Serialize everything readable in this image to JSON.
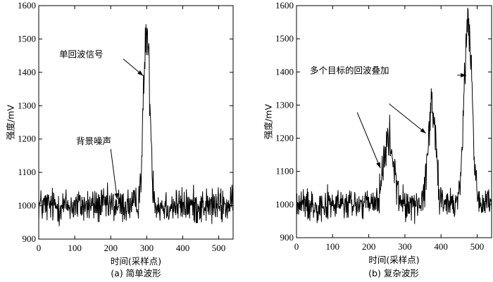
{
  "chart_data": [
    {
      "type": "line",
      "caption": "(a) 简单波形",
      "xlabel": "时间(采样点)",
      "ylabel": "强度/mV",
      "xlim": [
        0,
        540
      ],
      "ylim": [
        900,
        1600
      ],
      "xticks": [
        0,
        100,
        200,
        300,
        400,
        500
      ],
      "yticks": [
        900,
        1000,
        1100,
        1200,
        1300,
        1400,
        1500,
        1600
      ],
      "baseline": 1000,
      "noise_amplitude": 45,
      "peaks": [
        {
          "center": 300,
          "height": 1520,
          "width": 9
        }
      ],
      "annotations": [
        {
          "text": "单回波信号",
          "arrow_tip": [
            290,
            1390
          ]
        },
        {
          "text": "背景噪声",
          "arrow_tip": [
            218,
            1020
          ]
        }
      ]
    },
    {
      "type": "line",
      "caption": "(b) 复杂波形",
      "xlabel": "时间(采样点)",
      "ylabel": "强度/mV",
      "xlim": [
        0,
        540
      ],
      "ylim": [
        900,
        1600
      ],
      "xticks": [
        0,
        100,
        200,
        300,
        400,
        500
      ],
      "yticks": [
        900,
        1000,
        1100,
        1200,
        1300,
        1400,
        1500,
        1600
      ],
      "baseline": 1000,
      "noise_amplitude": 40,
      "peaks": [
        {
          "center": 255,
          "height": 1190,
          "width": 14
        },
        {
          "center": 375,
          "height": 1300,
          "width": 11
        },
        {
          "center": 475,
          "height": 1550,
          "width": 11
        }
      ],
      "annotations": [
        {
          "text": "多个目标的回波叠加",
          "arrow_tip": [
            470,
            1390
          ]
        },
        {
          "text": "",
          "arrow_tip": [
            232,
            1110
          ],
          "arrow_from": [
            168,
            1278
          ]
        },
        {
          "text": "",
          "arrow_tip": [
            358,
            1215
          ],
          "arrow_from": [
            256,
            1304
          ]
        }
      ]
    }
  ]
}
